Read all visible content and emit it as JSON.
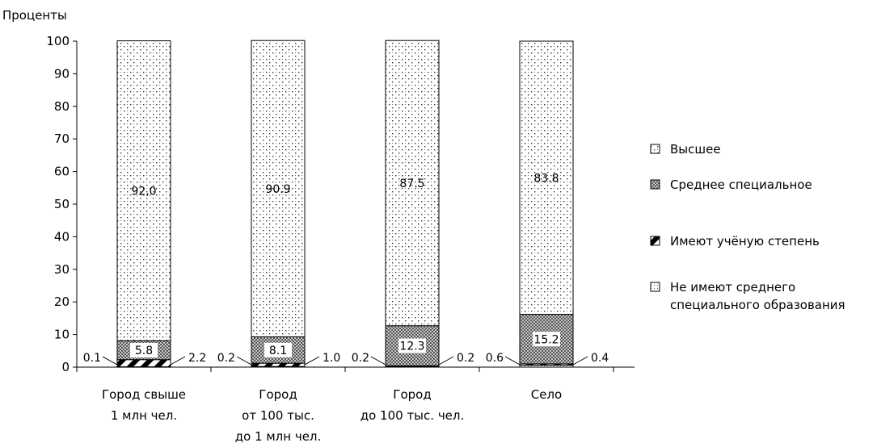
{
  "chart_data": {
    "type": "bar",
    "stacked": true,
    "ylabel": "Проценты",
    "ylim": [
      0,
      100
    ],
    "yticks": [
      "0",
      "10",
      "20",
      "30",
      "40",
      "50",
      "60",
      "70",
      "80",
      "90",
      "100"
    ],
    "grid": false,
    "legend_position": "right",
    "categories": [
      [
        "Город свыше",
        "1 млн чел."
      ],
      [
        "Город",
        "от 100 тыс.",
        "до 1 млн чел."
      ],
      [
        "Город",
        "до 100 тыс. чел."
      ],
      [
        "Село"
      ]
    ],
    "series": [
      {
        "name": "Высшее",
        "pattern": "dots",
        "values": [
          92.0,
          90.9,
          87.5,
          83.8
        ],
        "labels": [
          "92,0",
          "90.9",
          "87.5",
          "83.8"
        ]
      },
      {
        "name": "Среднее специальное",
        "pattern": "crosshatch",
        "values": [
          5.8,
          8.1,
          12.3,
          15.2
        ],
        "labels": [
          "5.8",
          "8.1",
          "12.3",
          "15.2"
        ]
      },
      {
        "name": "Имеют учёную степень",
        "pattern": "diagonal",
        "values": [
          2.2,
          1.0,
          0.2,
          0.4
        ],
        "labels": [
          "2.2",
          "1.0",
          "0.2",
          "0.4"
        ]
      },
      {
        "name": "Не имеют среднего специального образования",
        "pattern": "sparse-dots",
        "values": [
          0.1,
          0.2,
          0.2,
          0.6
        ],
        "labels": [
          "0.1",
          "0.2",
          "0.2",
          "0.6"
        ]
      }
    ],
    "legend": [
      {
        "lines": [
          "Высшее"
        ],
        "pattern": "dots"
      },
      {
        "lines": [
          "Среднее специальное"
        ],
        "pattern": "crosshatch"
      },
      {
        "lines": [
          "Имеют учёную степень"
        ],
        "pattern": "diagonal"
      },
      {
        "lines": [
          "Не имеют среднего",
          "специального образования"
        ],
        "pattern": "sparse-dots"
      }
    ]
  }
}
